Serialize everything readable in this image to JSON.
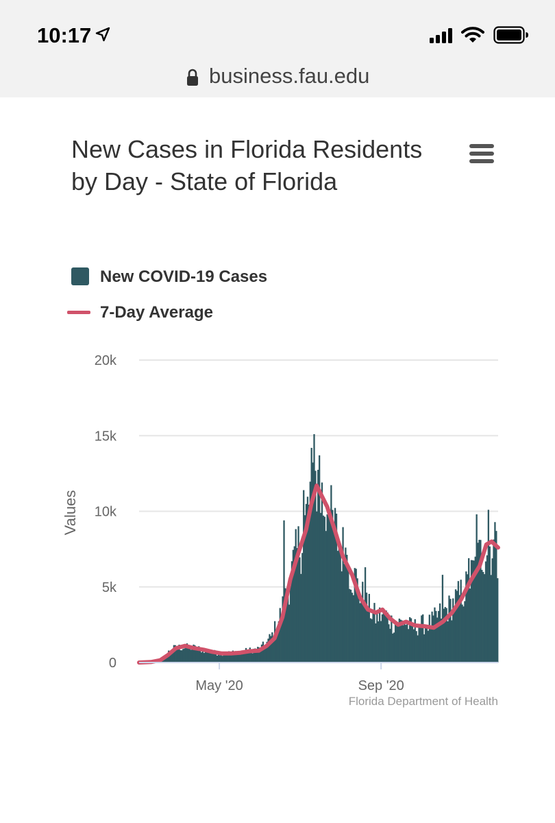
{
  "status_bar": {
    "time": "10:17"
  },
  "browser": {
    "url": "business.fau.edu"
  },
  "chart_data": {
    "type": "bar",
    "title": "New Cases in Florida Residents by Day - State of Florida",
    "ylabel": "Values",
    "xlabel": "",
    "ylim": [
      0,
      20000
    ],
    "yticks": [
      0,
      5000,
      10000,
      15000,
      20000
    ],
    "ytick_labels": [
      "0",
      "5k",
      "10k",
      "15k",
      "20k"
    ],
    "x_ticks": [
      {
        "date": "2020-05-01",
        "label": "May '20"
      },
      {
        "date": "2020-09-01",
        "label": "Sep '20"
      }
    ],
    "x_start": "2020-03-01",
    "x_end": "2020-11-29",
    "legend_position": "top-left",
    "grid": true,
    "credit": "Florida Department of Health",
    "series": [
      {
        "name": "New COVID-19 Cases",
        "type": "column",
        "color": "#2f5962",
        "keypoints": [
          [
            "2020-03-01",
            0
          ],
          [
            "2020-03-10",
            20
          ],
          [
            "2020-03-18",
            200
          ],
          [
            "2020-03-25",
            900
          ],
          [
            "2020-03-31",
            1000
          ],
          [
            "2020-04-10",
            1000
          ],
          [
            "2020-04-20",
            800
          ],
          [
            "2020-04-30",
            600
          ],
          [
            "2020-05-10",
            650
          ],
          [
            "2020-05-20",
            750
          ],
          [
            "2020-05-31",
            900
          ],
          [
            "2020-06-05",
            1200
          ],
          [
            "2020-06-10",
            1800
          ],
          [
            "2020-06-15",
            2800
          ],
          [
            "2020-06-20",
            4200
          ],
          [
            "2020-06-25",
            6000
          ],
          [
            "2020-06-30",
            7500
          ],
          [
            "2020-07-05",
            9000
          ],
          [
            "2020-07-10",
            11500
          ],
          [
            "2020-07-12",
            12500
          ],
          [
            "2020-07-17",
            11000
          ],
          [
            "2020-07-24",
            9500
          ],
          [
            "2020-07-31",
            8000
          ],
          [
            "2020-08-07",
            6500
          ],
          [
            "2020-08-14",
            5000
          ],
          [
            "2020-08-21",
            3800
          ],
          [
            "2020-08-28",
            3000
          ],
          [
            "2020-09-04",
            3200
          ],
          [
            "2020-09-11",
            2500
          ],
          [
            "2020-09-18",
            2700
          ],
          [
            "2020-09-25",
            2300
          ],
          [
            "2020-10-02",
            2500
          ],
          [
            "2020-10-09",
            2600
          ],
          [
            "2020-10-16",
            3200
          ],
          [
            "2020-10-23",
            3600
          ],
          [
            "2020-10-30",
            4300
          ],
          [
            "2020-11-06",
            5000
          ],
          [
            "2020-11-13",
            6500
          ],
          [
            "2020-11-20",
            7800
          ],
          [
            "2020-11-29",
            7500
          ]
        ],
        "spikes": [
          [
            "2020-07-12",
            15100
          ],
          [
            "2020-06-19",
            9400
          ],
          [
            "2020-07-04",
            11400
          ],
          [
            "2020-07-16",
            13700
          ],
          [
            "2020-07-23",
            10300
          ],
          [
            "2020-07-22",
            9800
          ],
          [
            "2020-08-20",
            6300
          ],
          [
            "2020-08-05",
            7600
          ],
          [
            "2020-08-13",
            6200
          ],
          [
            "2020-10-18",
            5800
          ],
          [
            "2020-11-07",
            6900
          ],
          [
            "2020-11-13",
            9800
          ],
          [
            "2020-11-22",
            10100
          ],
          [
            "2020-11-28",
            8700
          ]
        ]
      },
      {
        "name": "7-Day Average",
        "type": "line",
        "color": "#d0526a",
        "points": [
          [
            "2020-03-01",
            0
          ],
          [
            "2020-03-10",
            30
          ],
          [
            "2020-03-17",
            150
          ],
          [
            "2020-03-23",
            500
          ],
          [
            "2020-03-29",
            950
          ],
          [
            "2020-04-05",
            1100
          ],
          [
            "2020-04-12",
            950
          ],
          [
            "2020-04-19",
            850
          ],
          [
            "2020-04-26",
            700
          ],
          [
            "2020-05-03",
            600
          ],
          [
            "2020-05-10",
            600
          ],
          [
            "2020-05-17",
            650
          ],
          [
            "2020-05-24",
            750
          ],
          [
            "2020-05-31",
            780
          ],
          [
            "2020-06-06",
            1100
          ],
          [
            "2020-06-12",
            1600
          ],
          [
            "2020-06-18",
            3000
          ],
          [
            "2020-06-24",
            5500
          ],
          [
            "2020-06-30",
            7200
          ],
          [
            "2020-07-06",
            8800
          ],
          [
            "2020-07-10",
            10500
          ],
          [
            "2020-07-14",
            11700
          ],
          [
            "2020-07-18",
            11000
          ],
          [
            "2020-07-22",
            10300
          ],
          [
            "2020-07-28",
            8700
          ],
          [
            "2020-08-03",
            7000
          ],
          [
            "2020-08-10",
            5800
          ],
          [
            "2020-08-16",
            4300
          ],
          [
            "2020-08-22",
            3500
          ],
          [
            "2020-08-28",
            3300
          ],
          [
            "2020-09-02",
            3500
          ],
          [
            "2020-09-08",
            2900
          ],
          [
            "2020-09-14",
            2500
          ],
          [
            "2020-09-20",
            2700
          ],
          [
            "2020-09-27",
            2450
          ],
          [
            "2020-10-04",
            2400
          ],
          [
            "2020-10-11",
            2300
          ],
          [
            "2020-10-18",
            2700
          ],
          [
            "2020-10-25",
            3300
          ],
          [
            "2020-11-01",
            4200
          ],
          [
            "2020-11-08",
            5400
          ],
          [
            "2020-11-15",
            6400
          ],
          [
            "2020-11-20",
            7800
          ],
          [
            "2020-11-24",
            8000
          ],
          [
            "2020-11-29",
            7600
          ]
        ]
      }
    ]
  },
  "legend": {
    "items": [
      {
        "label": "New COVID-19 Cases"
      },
      {
        "label": "7-Day Average"
      }
    ]
  }
}
